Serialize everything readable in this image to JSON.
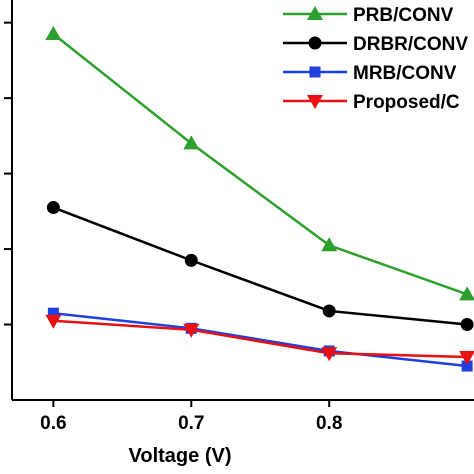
{
  "chart_data": {
    "type": "line",
    "title": "",
    "xlabel": "Voltage (V)",
    "ylabel": "",
    "x": [
      0.6,
      0.7,
      0.8,
      0.9
    ],
    "x_ticks": [
      "0.6",
      "0.7",
      "0.8"
    ],
    "xlim": [
      0.57,
      0.905
    ],
    "ylim": [
      0,
      5.3
    ],
    "y_ticks": [
      1,
      2,
      3,
      4,
      5
    ],
    "grid": false,
    "legend": "top-right",
    "series": [
      {
        "name": "PRB/CONV",
        "color": "#2ca02c",
        "marker": "triangle-up",
        "values": [
          4.85,
          3.4,
          2.05,
          1.4
        ]
      },
      {
        "name": "DRBR/CONV",
        "color": "#000000",
        "marker": "circle",
        "values": [
          2.55,
          1.85,
          1.18,
          1.0
        ]
      },
      {
        "name": "MRB/CONV",
        "color": "#1f3fe0",
        "marker": "square",
        "values": [
          1.15,
          0.95,
          0.65,
          0.45
        ]
      },
      {
        "name": "Proposed/C",
        "color": "#e81010",
        "marker": "triangle-down",
        "values": [
          1.05,
          0.93,
          0.62,
          0.57
        ]
      }
    ]
  }
}
